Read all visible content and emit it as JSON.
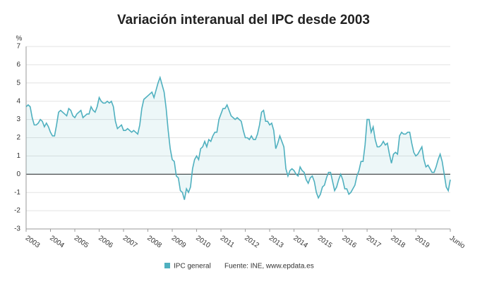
{
  "chart_data": {
    "type": "line",
    "title": "Variación interanual del IPC desde 2003",
    "y_label": "%",
    "source": "Fuente: INE, www.epdata.es",
    "categories": [
      "2003",
      null,
      null,
      null,
      null,
      null,
      null,
      null,
      null,
      null,
      null,
      null,
      "2004",
      null,
      null,
      null,
      null,
      null,
      null,
      null,
      null,
      null,
      null,
      null,
      "2005",
      null,
      null,
      null,
      null,
      null,
      null,
      null,
      null,
      null,
      null,
      null,
      "2006",
      null,
      null,
      null,
      null,
      null,
      null,
      null,
      null,
      null,
      null,
      null,
      "2007",
      null,
      null,
      null,
      null,
      null,
      null,
      null,
      null,
      null,
      null,
      null,
      "2008",
      null,
      null,
      null,
      null,
      null,
      null,
      null,
      null,
      null,
      null,
      null,
      "2009",
      null,
      null,
      null,
      null,
      null,
      null,
      null,
      null,
      null,
      null,
      null,
      "2010",
      null,
      null,
      null,
      null,
      null,
      null,
      null,
      null,
      null,
      null,
      null,
      "2011",
      null,
      null,
      null,
      null,
      null,
      null,
      null,
      null,
      null,
      null,
      null,
      "2012",
      null,
      null,
      null,
      null,
      null,
      null,
      null,
      null,
      null,
      null,
      null,
      "2013",
      null,
      null,
      null,
      null,
      null,
      null,
      null,
      null,
      null,
      null,
      null,
      "2014",
      null,
      null,
      null,
      null,
      null,
      null,
      null,
      null,
      null,
      null,
      null,
      "2015",
      null,
      null,
      null,
      null,
      null,
      null,
      null,
      null,
      null,
      null,
      null,
      "2016",
      null,
      null,
      null,
      null,
      null,
      null,
      null,
      null,
      null,
      null,
      null,
      "2017",
      null,
      null,
      null,
      null,
      null,
      null,
      null,
      null,
      null,
      null,
      null,
      "2018",
      null,
      null,
      null,
      null,
      null,
      null,
      null,
      null,
      null,
      null,
      null,
      "2019",
      null,
      null,
      null,
      null,
      null,
      null,
      null,
      null,
      null,
      null,
      null,
      null,
      null,
      null,
      null,
      null,
      "Junio"
    ],
    "series": [
      {
        "name": "IPC general",
        "color": "#4fb0bf",
        "values": [
          3.7,
          3.8,
          3.7,
          3.1,
          2.7,
          2.7,
          2.8,
          3.0,
          2.9,
          2.6,
          2.8,
          2.6,
          2.3,
          2.1,
          2.1,
          2.7,
          3.4,
          3.5,
          3.4,
          3.3,
          3.2,
          3.6,
          3.5,
          3.2,
          3.1,
          3.3,
          3.4,
          3.5,
          3.1,
          3.2,
          3.3,
          3.3,
          3.7,
          3.5,
          3.4,
          3.7,
          4.2,
          4.0,
          3.9,
          3.9,
          4.0,
          3.9,
          4.0,
          3.7,
          2.9,
          2.5,
          2.6,
          2.7,
          2.4,
          2.4,
          2.5,
          2.4,
          2.3,
          2.4,
          2.3,
          2.2,
          2.7,
          3.6,
          4.1,
          4.2,
          4.3,
          4.4,
          4.5,
          4.2,
          4.6,
          5.0,
          5.3,
          4.9,
          4.5,
          3.6,
          2.4,
          1.4,
          0.8,
          0.7,
          -0.1,
          -0.2,
          -0.9,
          -1.0,
          -1.4,
          -0.8,
          -1.0,
          -0.7,
          0.3,
          0.8,
          1.0,
          0.8,
          1.4,
          1.5,
          1.8,
          1.5,
          1.9,
          1.8,
          2.1,
          2.3,
          2.3,
          3.0,
          3.3,
          3.6,
          3.6,
          3.8,
          3.5,
          3.2,
          3.1,
          3.0,
          3.1,
          3.0,
          2.9,
          2.4,
          2.0,
          2.0,
          1.9,
          2.1,
          1.9,
          1.9,
          2.2,
          2.7,
          3.4,
          3.5,
          2.9,
          2.9,
          2.7,
          2.8,
          2.4,
          1.4,
          1.7,
          2.1,
          1.8,
          1.5,
          0.3,
          -0.1,
          0.2,
          0.3,
          0.2,
          0.0,
          -0.1,
          0.4,
          0.2,
          0.1,
          -0.3,
          -0.5,
          -0.2,
          -0.1,
          -0.4,
          -1.0,
          -1.3,
          -1.1,
          -0.7,
          -0.6,
          -0.2,
          0.1,
          0.1,
          -0.4,
          -0.9,
          -0.7,
          -0.3,
          0.0,
          -0.3,
          -0.8,
          -0.8,
          -1.1,
          -1.0,
          -0.8,
          -0.6,
          -0.1,
          0.2,
          0.7,
          0.7,
          1.6,
          3.0,
          3.0,
          2.3,
          2.6,
          1.9,
          1.5,
          1.5,
          1.6,
          1.8,
          1.6,
          1.7,
          1.1,
          0.6,
          1.1,
          1.2,
          1.1,
          2.1,
          2.3,
          2.2,
          2.2,
          2.3,
          2.3,
          1.7,
          1.2,
          1.0,
          1.1,
          1.3,
          1.5,
          0.8,
          0.4,
          0.5,
          0.3,
          0.1,
          0.1,
          0.4,
          0.8,
          1.1,
          0.7,
          0.0,
          -0.7,
          -0.9,
          -0.3
        ]
      }
    ],
    "ylim": [
      -3,
      7
    ],
    "yticks": [
      -3,
      -2,
      -1,
      0,
      1,
      2,
      3,
      4,
      5,
      6,
      7
    ],
    "grid": true
  }
}
